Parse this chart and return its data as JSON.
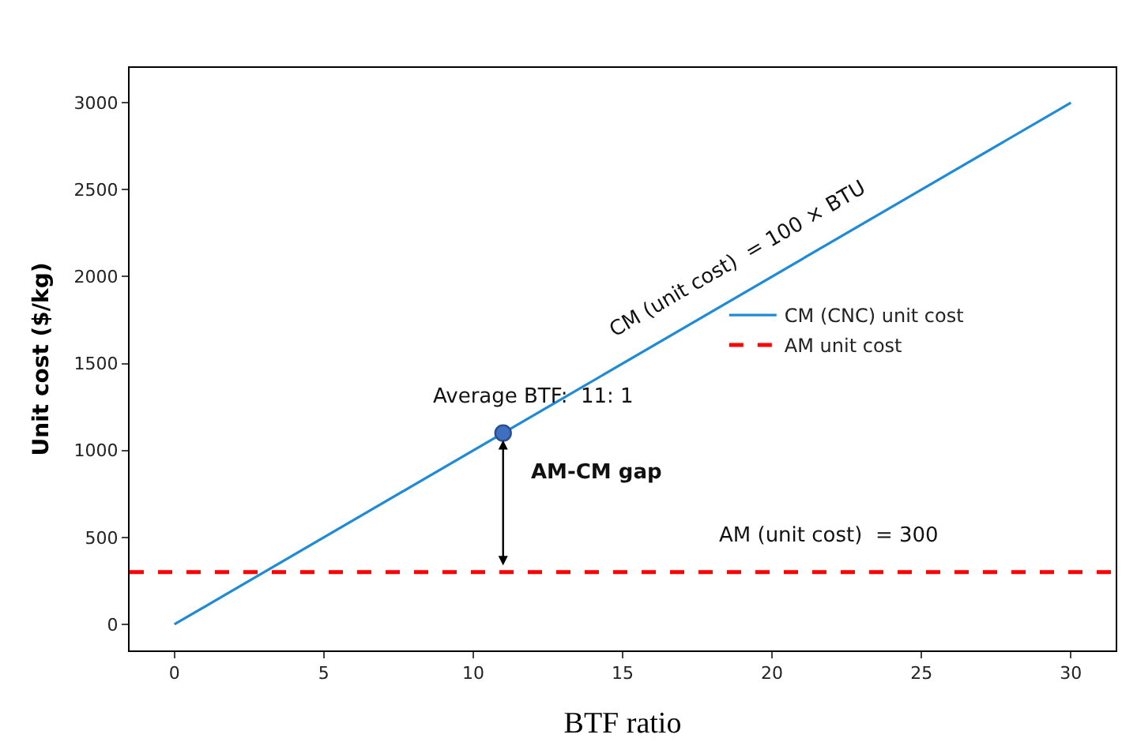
{
  "chart_data": {
    "type": "line",
    "xlabel": "BTF ratio",
    "ylabel": "Unit cost ($/kg)",
    "x": [
      0,
      30
    ],
    "series": [
      {
        "name": "CM (CNC) unit cost",
        "color": "#1f8ad6",
        "values": [
          0,
          3000
        ]
      },
      {
        "type": "scatter",
        "color": "#3f6fc0",
        "x": [
          11
        ],
        "values": [
          1100
        ]
      }
    ],
    "ref_lines": [
      {
        "axis": "y",
        "value": 300,
        "label": "AM unit cost",
        "color": "#ff0000",
        "line_style": "dashed"
      }
    ],
    "annotations": [
      "CM (unit cost)  = 100 × BTU",
      "Average BTF:  11: 1",
      "AM-CM gap",
      "AM (unit cost)  = 300"
    ],
    "xlim": [
      -1.5,
      31.5
    ],
    "ylim": [
      -150,
      3200
    ],
    "xticks": [
      0,
      5,
      10,
      15,
      20,
      25,
      30
    ],
    "yticks": [
      0,
      500,
      1000,
      1500,
      2000,
      2500,
      3000
    ],
    "grid": false,
    "legend": "right"
  }
}
